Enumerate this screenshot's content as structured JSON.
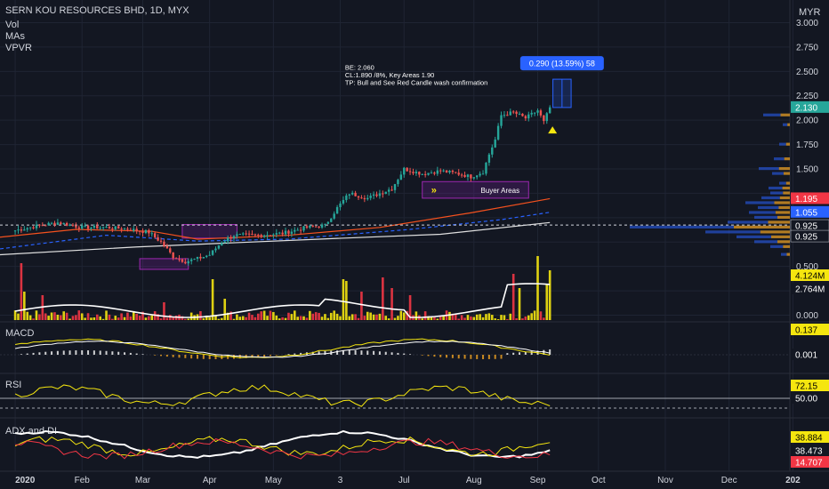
{
  "chart_data": {
    "type": "candlestick",
    "title": "SERN KOU RESOURCES BHD, 1D, MYX",
    "currency": "MYR",
    "indicators_legend": [
      "Vol",
      "MAs",
      "VPVR"
    ],
    "x_axis": {
      "labels": [
        "2020",
        "Feb",
        "Mar",
        "Apr",
        "May",
        "3",
        "Jul",
        "Aug",
        "Sep",
        "Oct",
        "Nov",
        "Dec",
        "202"
      ],
      "label_days": [
        0,
        22,
        42,
        64,
        85,
        107,
        128,
        151,
        172,
        192,
        214,
        235,
        256
      ],
      "range_days": [
        -5,
        255
      ]
    },
    "price_axis": {
      "ticks": [
        3.0,
        2.75,
        2.5,
        2.25,
        2.0,
        1.75,
        1.5,
        1.25,
        1.0,
        0.75,
        0.5,
        0.25,
        0.0
      ],
      "tick_labels": [
        "3.000",
        "2.750",
        "2.500",
        "2.250",
        "2.000",
        "1.750",
        "1.500",
        "",
        "",
        "",
        "0.500",
        "",
        "0.000"
      ],
      "ylim": [
        -0.05,
        3.05
      ]
    },
    "price_badges": [
      {
        "text": "2.130",
        "value": 2.13,
        "color": "#26a69a"
      },
      {
        "text": "1.195",
        "value": 1.195,
        "color": "#f23645"
      },
      {
        "text": "1.055",
        "value": 1.055,
        "color": "#2962ff"
      },
      {
        "text": "0.925",
        "value": 0.925,
        "color": "#131722"
      },
      {
        "text": "0.925",
        "value": 0.925,
        "color": "#131722"
      }
    ],
    "volume_badges": [
      {
        "text": "4.124M",
        "value": 4.124,
        "color": "#f5e60f"
      },
      {
        "text": "2.764M",
        "value": 2.764,
        "color": "#131722"
      }
    ],
    "price_anchors": [
      {
        "day": 0,
        "p": 0.87
      },
      {
        "day": 8,
        "p": 0.92
      },
      {
        "day": 14,
        "p": 0.95
      },
      {
        "day": 22,
        "p": 0.9
      },
      {
        "day": 30,
        "p": 0.9
      },
      {
        "day": 38,
        "p": 0.88
      },
      {
        "day": 44,
        "p": 0.85
      },
      {
        "day": 48,
        "p": 0.75
      },
      {
        "day": 52,
        "p": 0.6
      },
      {
        "day": 56,
        "p": 0.55
      },
      {
        "day": 60,
        "p": 0.58
      },
      {
        "day": 64,
        "p": 0.62
      },
      {
        "day": 68,
        "p": 0.75
      },
      {
        "day": 72,
        "p": 0.82
      },
      {
        "day": 80,
        "p": 0.82
      },
      {
        "day": 88,
        "p": 0.84
      },
      {
        "day": 96,
        "p": 0.9
      },
      {
        "day": 102,
        "p": 0.92
      },
      {
        "day": 106,
        "p": 1.1
      },
      {
        "day": 110,
        "p": 1.25
      },
      {
        "day": 116,
        "p": 1.2
      },
      {
        "day": 120,
        "p": 1.25
      },
      {
        "day": 124,
        "p": 1.3
      },
      {
        "day": 128,
        "p": 1.5
      },
      {
        "day": 134,
        "p": 1.45
      },
      {
        "day": 140,
        "p": 1.48
      },
      {
        "day": 146,
        "p": 1.45
      },
      {
        "day": 150,
        "p": 1.42
      },
      {
        "day": 154,
        "p": 1.47
      },
      {
        "day": 156,
        "p": 1.65
      },
      {
        "day": 158,
        "p": 1.8
      },
      {
        "day": 160,
        "p": 2.05
      },
      {
        "day": 164,
        "p": 2.08
      },
      {
        "day": 168,
        "p": 2.02
      },
      {
        "day": 172,
        "p": 2.1
      },
      {
        "day": 174,
        "p": 1.98
      },
      {
        "day": 176,
        "p": 2.13
      }
    ],
    "moving_averages": [
      {
        "color": "#e0e0e0",
        "points": [
          [
            -5,
            0.62
          ],
          [
            40,
            0.7
          ],
          [
            100,
            0.78
          ],
          [
            140,
            0.83
          ],
          [
            176,
            0.95
          ]
        ]
      },
      {
        "color": "#2962ff",
        "dashed": true,
        "points": [
          [
            -5,
            0.68
          ],
          [
            30,
            0.82
          ],
          [
            60,
            0.76
          ],
          [
            90,
            0.78
          ],
          [
            130,
            0.88
          ],
          [
            160,
            0.98
          ],
          [
            176,
            1.055
          ]
        ]
      },
      {
        "color": "#f4511e",
        "points": [
          [
            -5,
            0.8
          ],
          [
            20,
            0.88
          ],
          [
            45,
            0.86
          ],
          [
            60,
            0.78
          ],
          [
            90,
            0.82
          ],
          [
            120,
            0.9
          ],
          [
            150,
            1.05
          ],
          [
            176,
            1.195
          ]
        ]
      }
    ],
    "reference_line": 0.925,
    "zones": [
      {
        "label": "",
        "d0": 55,
        "d1": 73,
        "p0": 0.93,
        "p1": 0.79
      },
      {
        "label": "",
        "d0": 41,
        "d1": 57,
        "p0": 0.58,
        "p1": 0.47
      },
      {
        "label": "Buyer Areas",
        "d0": 134,
        "d1": 169,
        "p0": 1.37,
        "p1": 1.2
      }
    ],
    "annotation": {
      "lines": [
        "BE: 2.060",
        "CL:1.890 /8%, Key Areas 1.90",
        "TP: Bull and See Red Candle wash confirmation"
      ],
      "day": 115,
      "price": 2.5
    },
    "measure": {
      "label": "0.290 (13.59%) 58",
      "d0": 177,
      "d1": 183,
      "p0": 2.13,
      "p1": 2.42
    },
    "vpvr_rows": [
      [
        2.05,
        30
      ],
      [
        1.95,
        8
      ],
      [
        1.75,
        12
      ],
      [
        1.6,
        18
      ],
      [
        1.5,
        35
      ],
      [
        1.45,
        20
      ],
      [
        1.35,
        12
      ],
      [
        1.3,
        24
      ],
      [
        1.25,
        22
      ],
      [
        1.2,
        32
      ],
      [
        1.15,
        50
      ],
      [
        1.1,
        36
      ],
      [
        1.05,
        46
      ],
      [
        1.0,
        40
      ],
      [
        0.95,
        70
      ],
      [
        0.9,
        180
      ],
      [
        0.85,
        95
      ],
      [
        0.8,
        60
      ],
      [
        0.75,
        40
      ],
      [
        0.7,
        22
      ],
      [
        0.62,
        10
      ]
    ],
    "volume_spikes": [
      [
        2,
        3.2
      ],
      [
        3,
        1.6
      ],
      [
        9,
        1.4
      ],
      [
        49,
        1.0
      ],
      [
        65,
        2.3
      ],
      [
        69,
        1.2
      ],
      [
        108,
        2.3
      ],
      [
        109,
        2.2
      ],
      [
        114,
        1.6
      ],
      [
        121,
        2.4
      ],
      [
        124,
        1.8
      ],
      [
        130,
        1.4
      ],
      [
        164,
        2.6
      ],
      [
        166,
        1.8
      ],
      [
        172,
        3.6
      ],
      [
        175,
        2.0
      ],
      [
        176,
        2.8
      ]
    ],
    "panels": [
      {
        "name": "MACD",
        "badges": [
          {
            "text": "0.137",
            "color": "#f5e60f"
          },
          {
            "text": "0.001",
            "color": "#131722"
          }
        ]
      },
      {
        "name": "RSI",
        "badges": [
          {
            "text": "72.15",
            "color": "#f5e60f"
          },
          {
            "text": "50.00",
            "color": "#131722"
          }
        ]
      },
      {
        "name": "ADX and DI",
        "badges": [
          {
            "text": "38.884",
            "color": "#f5e60f"
          },
          {
            "text": "38.473",
            "color": "#131722"
          },
          {
            "text": "14.707",
            "color": "#f23645"
          }
        ]
      }
    ]
  }
}
